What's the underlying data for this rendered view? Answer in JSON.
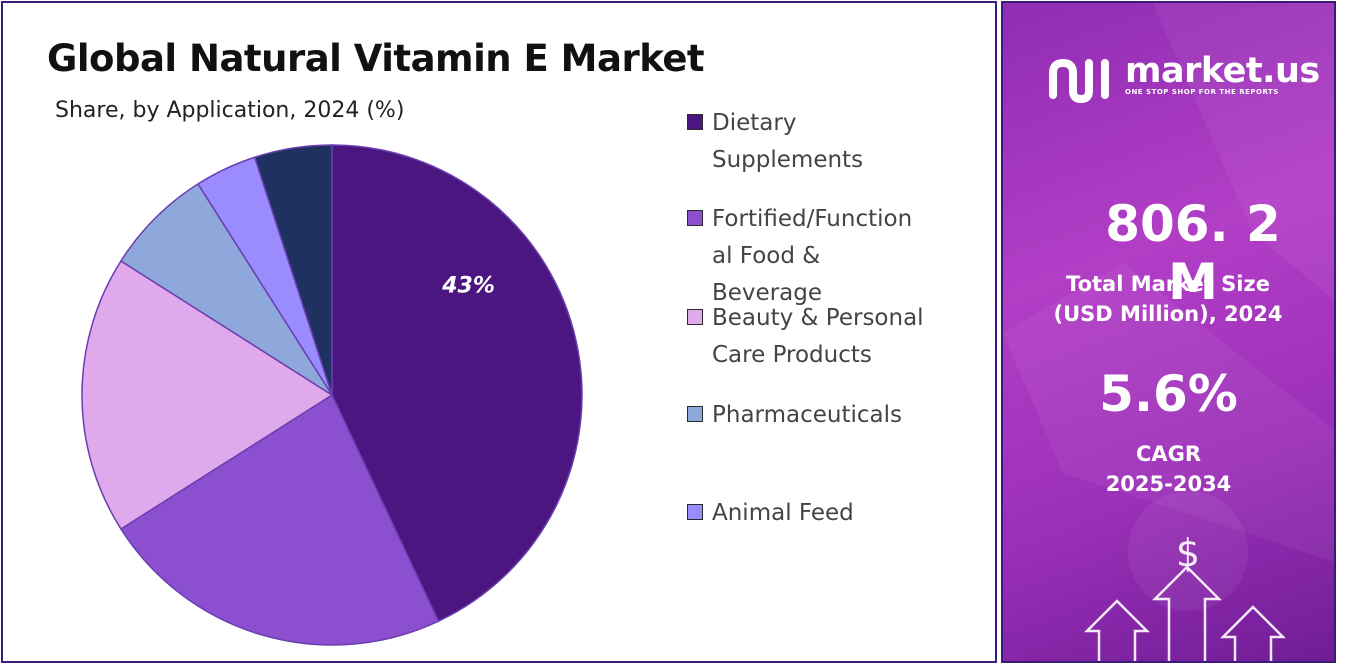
{
  "title": "Global Natural Vitamin E Market",
  "subtitle": "Share, by Application, 2024 (%)",
  "chart_data": {
    "type": "pie",
    "series": [
      {
        "name": "Dietary Supplements",
        "value": 43,
        "color": "#4b1680"
      },
      {
        "name": "Fortified/Functional Food & Beverage",
        "value": 23,
        "color": "#8b4fd0"
      },
      {
        "name": "Beauty & Personal Care Products",
        "value": 18,
        "color": "#e0a9ec"
      },
      {
        "name": "Pharmaceuticals",
        "value": 7,
        "color": "#8ea8dc"
      },
      {
        "name": "Animal Feed",
        "value": 4,
        "color": "#9a8cff"
      },
      {
        "name": "",
        "value": 5,
        "color": "#1f3160"
      }
    ],
    "data_labels": [
      {
        "series": "Dietary Supplements",
        "text": "43%"
      }
    ]
  },
  "legend": [
    {
      "label": "Dietary Supplements",
      "lines": [
        "Dietary",
        "Supplements"
      ],
      "color": "#4b1680"
    },
    {
      "label": "Fortified/Functional Food & Beverage",
      "lines": [
        "Fortified/Function",
        "al Food &",
        "Beverage"
      ],
      "color": "#8b4fd0"
    },
    {
      "label": "Beauty & Personal Care Products",
      "lines": [
        "Beauty & Personal",
        "Care Products"
      ],
      "color": "#e0a9ec"
    },
    {
      "label": "Pharmaceuticals",
      "lines": [
        "Pharmaceuticals"
      ],
      "color": "#8ea8dc"
    },
    {
      "label": "Animal Feed",
      "lines": [
        "Animal Feed"
      ],
      "color": "#9a8cff"
    }
  ],
  "brand": {
    "name": "market.us",
    "tagline": "ONE STOP SHOP FOR THE REPORTS",
    "icon": "market-us-logo-icon"
  },
  "stats": {
    "market_size": "806. 2 M",
    "market_size_label_line1": "Total Market Size",
    "market_size_label_line2": "(USD Million), 2024",
    "cagr": "5.6%",
    "cagr_label_line1": "CAGR",
    "cagr_label_line2": "2025-2034"
  },
  "decoration": {
    "dollar_symbol": "$",
    "icons": [
      "dollar-icon",
      "up-arrow-icon"
    ]
  },
  "colors": {
    "panel_border": "#3b1a78",
    "panel_gradient_start": "#8f2db3",
    "panel_gradient_end": "#6f1d96"
  }
}
